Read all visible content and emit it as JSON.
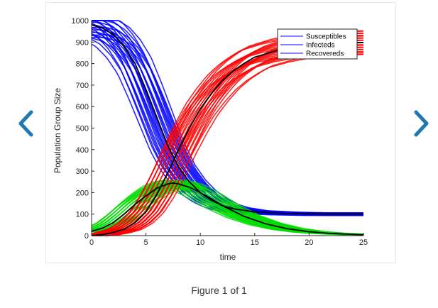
{
  "viewer": {
    "caption": "Figure 1 of 1",
    "prev_icon": "chevron-left-icon",
    "next_icon": "chevron-right-icon",
    "accent_color": "#1f78b4"
  },
  "chart_data": {
    "type": "line",
    "title": "",
    "xlabel": "time",
    "ylabel": "Population Group Size",
    "xlim": [
      0,
      25
    ],
    "ylim": [
      0,
      1000
    ],
    "x_ticks": [
      0,
      5,
      10,
      15,
      20,
      25
    ],
    "y_ticks": [
      0,
      100,
      200,
      300,
      400,
      500,
      600,
      700,
      800,
      900,
      1000
    ],
    "grid": false,
    "legend_position": "top-right",
    "legend": [
      "Susceptibles",
      "Infecteds",
      "Recovereds"
    ],
    "series": [
      {
        "name": "Susceptibles",
        "color": "#0000ff",
        "x": [
          0,
          1,
          2,
          3,
          4,
          5,
          6,
          7,
          8,
          9,
          10,
          11,
          12,
          13,
          15,
          18,
          21,
          25
        ],
        "y": [
          980,
          965,
          935,
          880,
          800,
          680,
          550,
          420,
          320,
          250,
          200,
          165,
          140,
          125,
          110,
          103,
          100,
          100
        ]
      },
      {
        "name": "Infecteds",
        "color": "#00dd00",
        "x": [
          0,
          1,
          2,
          3,
          4,
          5,
          6,
          7,
          7.5,
          8,
          9,
          10,
          11,
          12,
          14,
          16,
          18,
          20,
          22,
          25
        ],
        "y": [
          20,
          35,
          60,
          100,
          145,
          185,
          220,
          240,
          245,
          240,
          225,
          200,
          170,
          140,
          90,
          55,
          32,
          18,
          10,
          4
        ]
      },
      {
        "name": "Recovereds",
        "color": "#ff0000",
        "x": [
          0,
          1,
          2,
          3,
          4,
          5,
          6,
          7,
          8,
          9,
          10,
          11,
          12,
          13,
          14,
          15,
          17,
          19,
          21,
          23,
          25
        ],
        "y": [
          0,
          5,
          15,
          30,
          60,
          110,
          190,
          290,
          400,
          500,
          590,
          660,
          720,
          765,
          800,
          830,
          860,
          880,
          890,
          895,
          898
        ]
      }
    ]
  }
}
